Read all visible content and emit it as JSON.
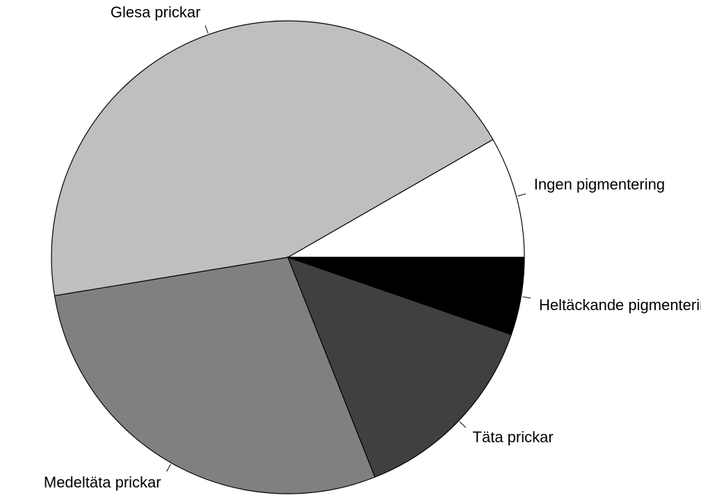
{
  "chart_data": {
    "type": "pie",
    "categories": [
      "Ingen pigmentering",
      "Glesa prickar",
      "Medeltäta prickar",
      "Täta prickar",
      "Heltäckande pigmentering"
    ],
    "values": [
      8.3,
      44.3,
      28.4,
      13.7,
      5.3
    ],
    "colors": [
      "#ffffff",
      "#bfbfbf",
      "#808080",
      "#404040",
      "#000000"
    ]
  }
}
